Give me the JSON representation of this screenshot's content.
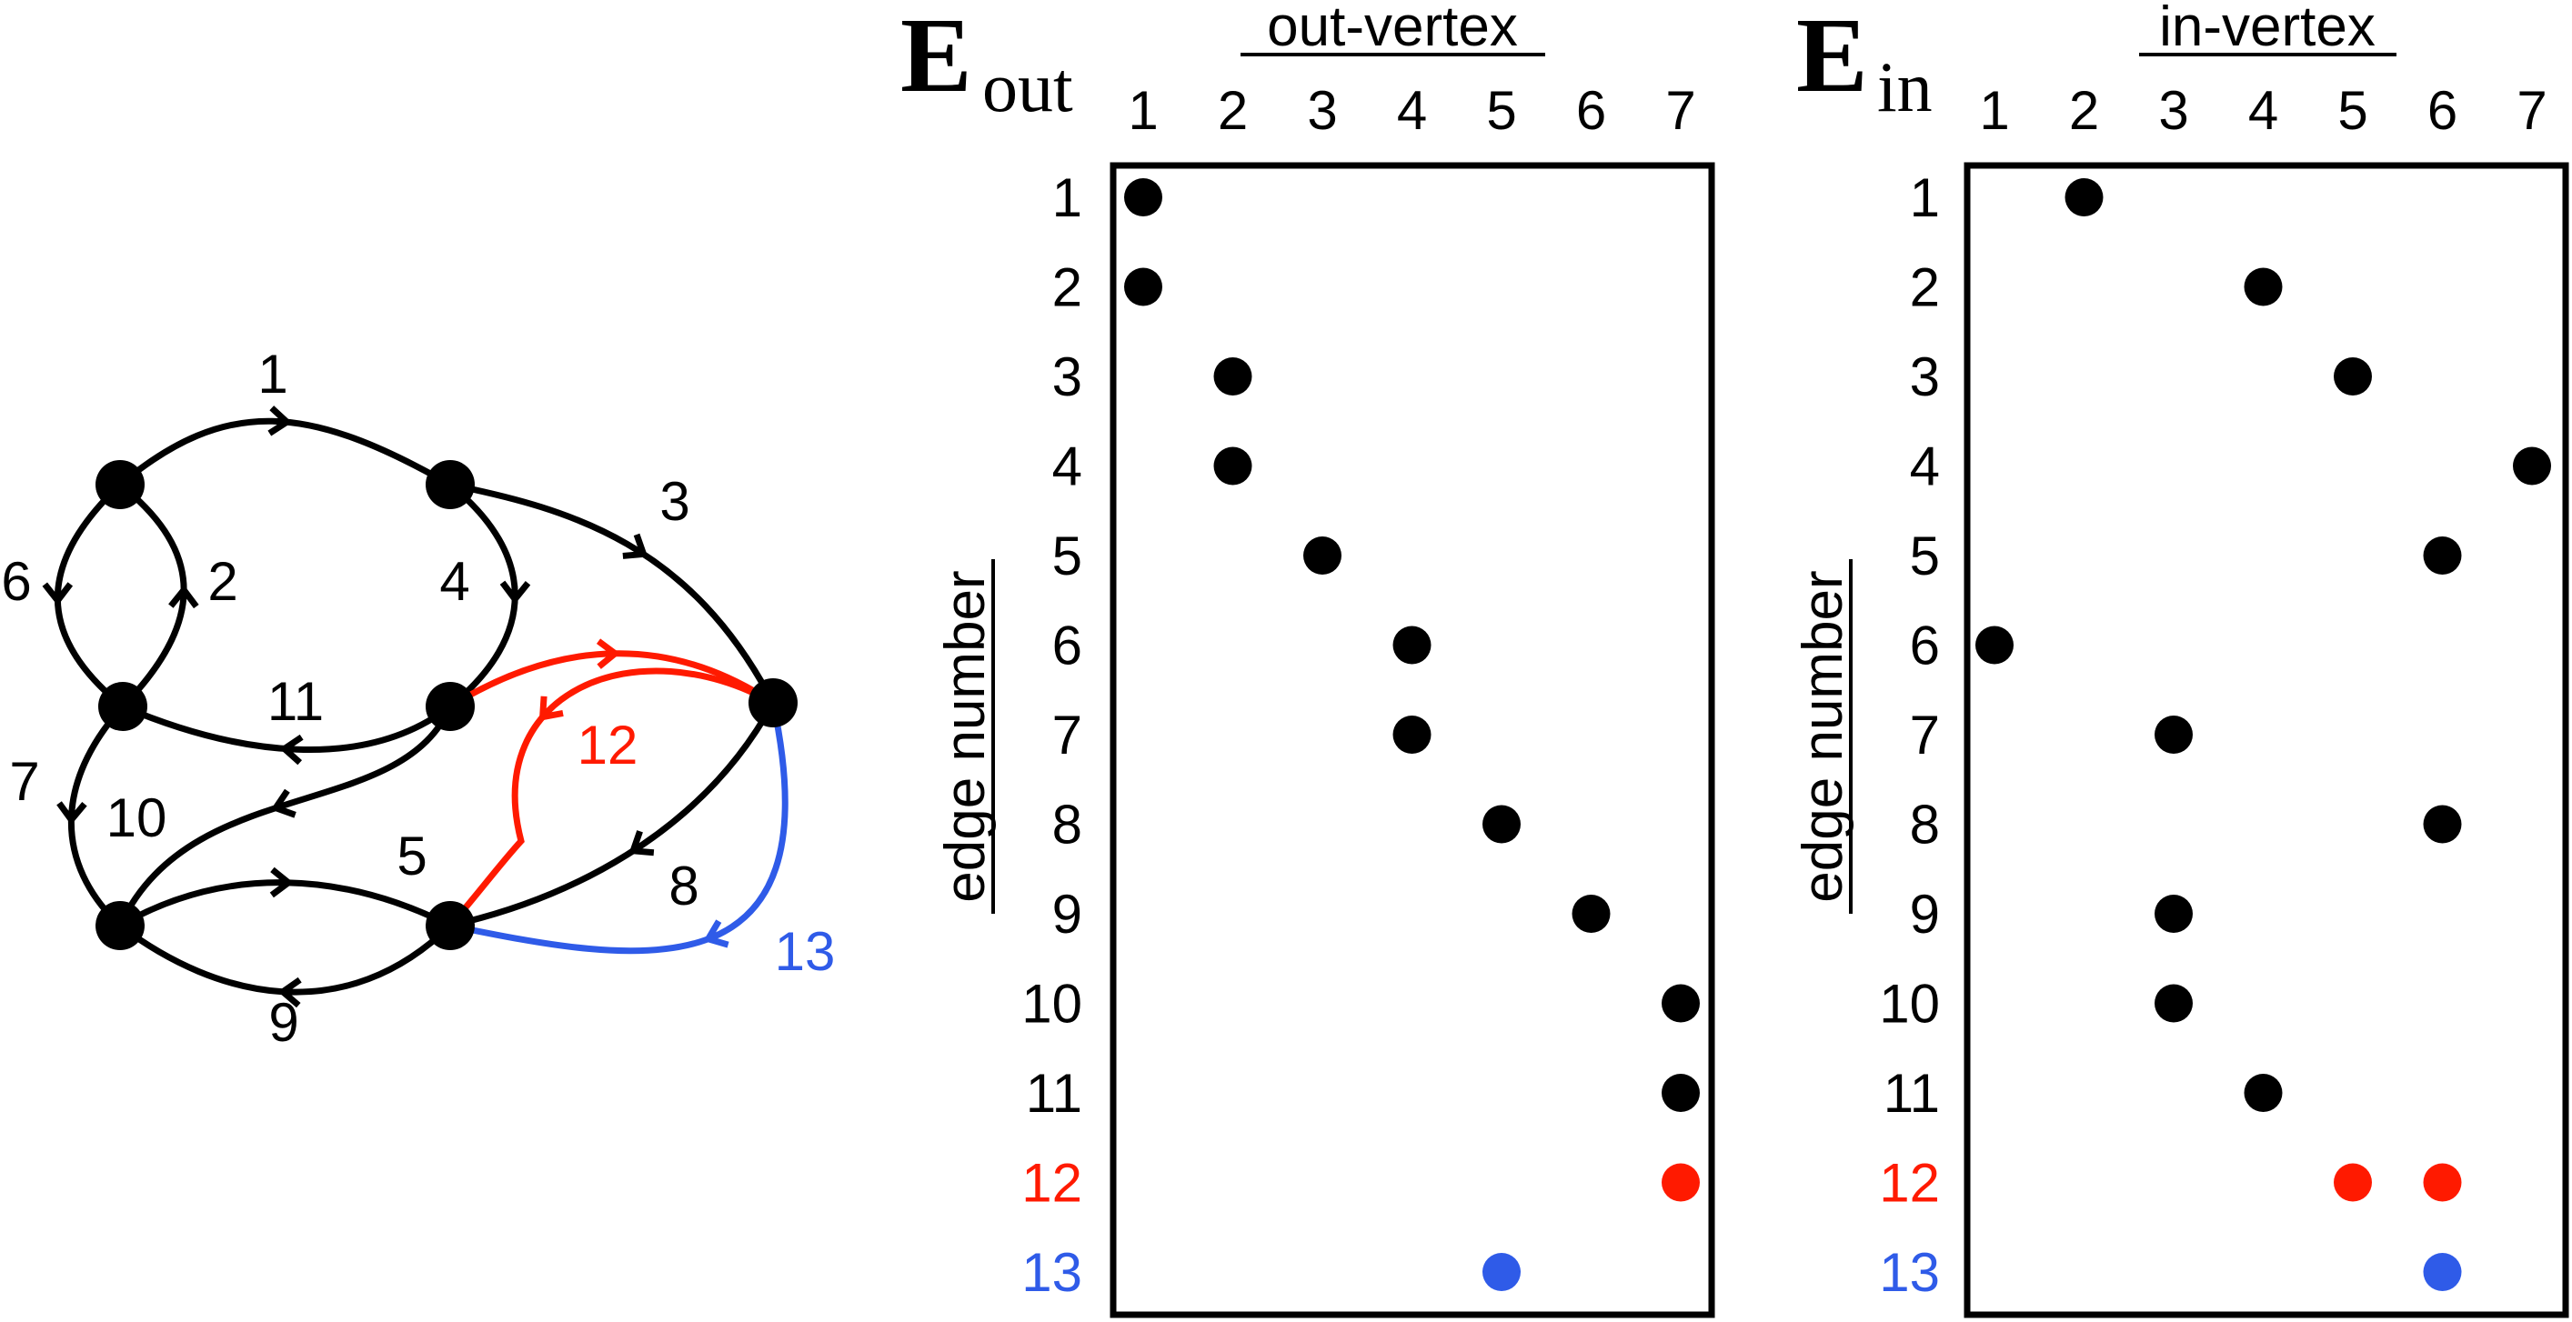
{
  "colors": {
    "default": "#000000",
    "red": "#ff1a00",
    "blue": "#2f5be8"
  },
  "graph": {
    "vertices": [
      {
        "id": "A",
        "label": ""
      },
      {
        "id": "B",
        "label": ""
      },
      {
        "id": "C",
        "label": ""
      },
      {
        "id": "D",
        "label": ""
      },
      {
        "id": "E",
        "label": ""
      },
      {
        "id": "F",
        "label": ""
      },
      {
        "id": "G",
        "label": ""
      }
    ],
    "edges": [
      {
        "label": "1",
        "color": "default"
      },
      {
        "label": "2",
        "color": "default"
      },
      {
        "label": "3",
        "color": "default"
      },
      {
        "label": "4",
        "color": "default"
      },
      {
        "label": "5",
        "color": "default"
      },
      {
        "label": "6",
        "color": "default"
      },
      {
        "label": "7",
        "color": "default"
      },
      {
        "label": "8",
        "color": "default"
      },
      {
        "label": "9",
        "color": "default"
      },
      {
        "label": "10",
        "color": "default"
      },
      {
        "label": "11",
        "color": "default"
      },
      {
        "label": "12",
        "color": "red"
      },
      {
        "label": "13",
        "color": "blue"
      }
    ]
  },
  "matrices": [
    {
      "title_main": "E",
      "title_sub": "out",
      "column_header": "out-vertex",
      "row_header": "edge number",
      "columns": [
        "1",
        "2",
        "3",
        "4",
        "5",
        "6",
        "7"
      ],
      "rows": [
        {
          "label": "1",
          "color": "default",
          "cols": [
            1
          ]
        },
        {
          "label": "2",
          "color": "default",
          "cols": [
            1
          ]
        },
        {
          "label": "3",
          "color": "default",
          "cols": [
            2
          ]
        },
        {
          "label": "4",
          "color": "default",
          "cols": [
            2
          ]
        },
        {
          "label": "5",
          "color": "default",
          "cols": [
            3
          ]
        },
        {
          "label": "6",
          "color": "default",
          "cols": [
            4
          ]
        },
        {
          "label": "7",
          "color": "default",
          "cols": [
            4
          ]
        },
        {
          "label": "8",
          "color": "default",
          "cols": [
            5
          ]
        },
        {
          "label": "9",
          "color": "default",
          "cols": [
            6
          ]
        },
        {
          "label": "10",
          "color": "default",
          "cols": [
            7
          ]
        },
        {
          "label": "11",
          "color": "default",
          "cols": [
            7
          ]
        },
        {
          "label": "12",
          "color": "red",
          "cols": [
            7
          ]
        },
        {
          "label": "13",
          "color": "blue",
          "cols": [
            5
          ]
        }
      ]
    },
    {
      "title_main": "E",
      "title_sub": "in",
      "column_header": "in-vertex",
      "row_header": "edge number",
      "columns": [
        "1",
        "2",
        "3",
        "4",
        "5",
        "6",
        "7"
      ],
      "rows": [
        {
          "label": "1",
          "color": "default",
          "cols": [
            2
          ]
        },
        {
          "label": "2",
          "color": "default",
          "cols": [
            4
          ]
        },
        {
          "label": "3",
          "color": "default",
          "cols": [
            5
          ]
        },
        {
          "label": "4",
          "color": "default",
          "cols": [
            7
          ]
        },
        {
          "label": "5",
          "color": "default",
          "cols": [
            6
          ]
        },
        {
          "label": "6",
          "color": "default",
          "cols": [
            1
          ]
        },
        {
          "label": "7",
          "color": "default",
          "cols": [
            3
          ]
        },
        {
          "label": "8",
          "color": "default",
          "cols": [
            6
          ]
        },
        {
          "label": "9",
          "color": "default",
          "cols": [
            3
          ]
        },
        {
          "label": "10",
          "color": "default",
          "cols": [
            3
          ]
        },
        {
          "label": "11",
          "color": "default",
          "cols": [
            4
          ]
        },
        {
          "label": "12",
          "color": "red",
          "cols": [
            5,
            6
          ]
        },
        {
          "label": "13",
          "color": "blue",
          "cols": [
            6
          ]
        }
      ]
    }
  ]
}
